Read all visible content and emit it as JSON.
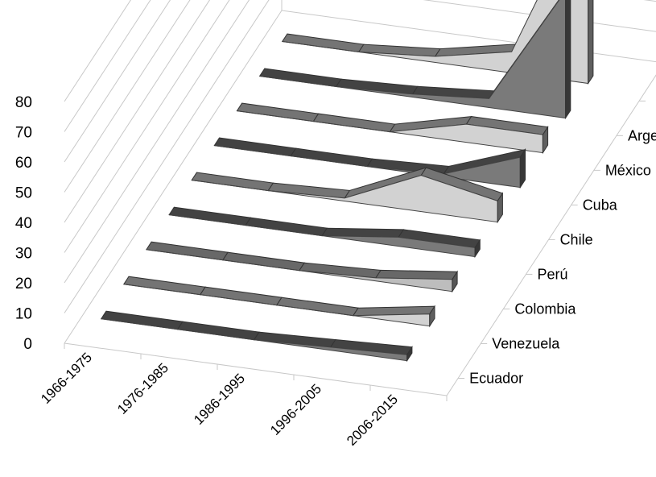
{
  "chart_data": {
    "type": "area",
    "style": "3d-ribbon",
    "title": "",
    "xlabel": "",
    "ylabel": "",
    "ylim": [
      0,
      80
    ],
    "yticks": [
      "0",
      "10",
      "20",
      "30",
      "40",
      "50",
      "60",
      "70",
      "80"
    ],
    "categories": [
      "1966-1975",
      "1976-1985",
      "1986-1995",
      "1996-2005",
      "2006-2015"
    ],
    "grid": true,
    "legend": "series labels along depth axis (right)",
    "series": [
      {
        "name": "Ecuador",
        "values": [
          0,
          0,
          0,
          1,
          2
        ],
        "color": "#7a7a7a"
      },
      {
        "name": "Venezuela",
        "values": [
          0,
          0,
          0,
          0,
          4
        ],
        "color": "#d2d2d2"
      },
      {
        "name": "Colombia",
        "values": [
          0,
          0,
          0,
          1,
          4
        ],
        "color": "#bdbdbd"
      },
      {
        "name": "Perú",
        "values": [
          0,
          0,
          0,
          3,
          3
        ],
        "color": "#7a7a7a"
      },
      {
        "name": "Chile",
        "values": [
          0,
          0,
          1,
          12,
          7
        ],
        "color": "#d2d2d2"
      },
      {
        "name": "Cuba",
        "values": [
          0,
          0,
          0,
          1,
          10
        ],
        "color": "#7a7a7a"
      },
      {
        "name": "México",
        "values": [
          0,
          0,
          0,
          6,
          6
        ],
        "color": "#d2d2d2"
      },
      {
        "name": "Argentina",
        "values": [
          0,
          0,
          1,
          3,
          42
        ],
        "color": "#7a7a7a"
      },
      {
        "name": "",
        "values": [
          0,
          0,
          2,
          7,
          62
        ],
        "color": "#d2d2d2"
      }
    ]
  }
}
